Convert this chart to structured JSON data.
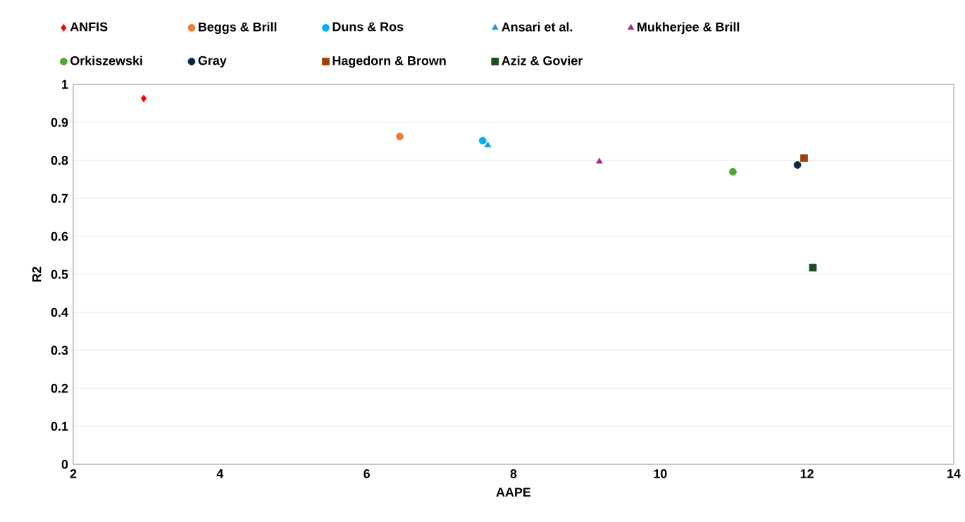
{
  "chart_data": {
    "type": "scatter",
    "xlabel": "AAPE",
    "ylabel": "R2",
    "xlim": [
      2,
      14
    ],
    "xticks": [
      2,
      4,
      6,
      8,
      10,
      12,
      14
    ],
    "ylim": [
      0,
      1
    ],
    "yticks": [
      0,
      0.1,
      0.2,
      0.3,
      0.4,
      0.5,
      0.6,
      0.7,
      0.8,
      0.9,
      1
    ],
    "grid": "y",
    "legend": "top",
    "series": [
      {
        "name": "ANFIS",
        "color": "#ff0000",
        "marker": "diamond",
        "x": [
          2.96
        ],
        "values": [
          0.963
        ]
      },
      {
        "name": "Beggs & Brill",
        "color": "#ed7d31",
        "marker": "circle",
        "x": [
          6.45
        ],
        "values": [
          0.863
        ]
      },
      {
        "name": "Duns & Ros",
        "color": "#00b0f0",
        "marker": "circle",
        "x": [
          7.58
        ],
        "values": [
          0.852
        ]
      },
      {
        "name": "Ansari et al.",
        "color": "#1f9bd8",
        "marker": "triangle",
        "x": [
          7.65
        ],
        "values": [
          0.84
        ]
      },
      {
        "name": "Mukherjee & Brill",
        "color": "#a02b93",
        "marker": "triangle",
        "x": [
          9.17
        ],
        "values": [
          0.797
        ]
      },
      {
        "name": "Orkiszewski",
        "color": "#4ea72e",
        "marker": "circle",
        "x": [
          10.99
        ],
        "values": [
          0.77
        ]
      },
      {
        "name": "Gray",
        "color": "#0e2841",
        "marker": "circle",
        "x": [
          11.87
        ],
        "values": [
          0.788
        ]
      },
      {
        "name": "Hagedorn & Brown",
        "color": "#a0410d",
        "marker": "square",
        "x": [
          11.96
        ],
        "values": [
          0.806
        ]
      },
      {
        "name": "Aziz & Govier",
        "color": "#1e4d1e",
        "marker": "square",
        "x": [
          12.08
        ],
        "values": [
          0.518
        ]
      }
    ]
  }
}
